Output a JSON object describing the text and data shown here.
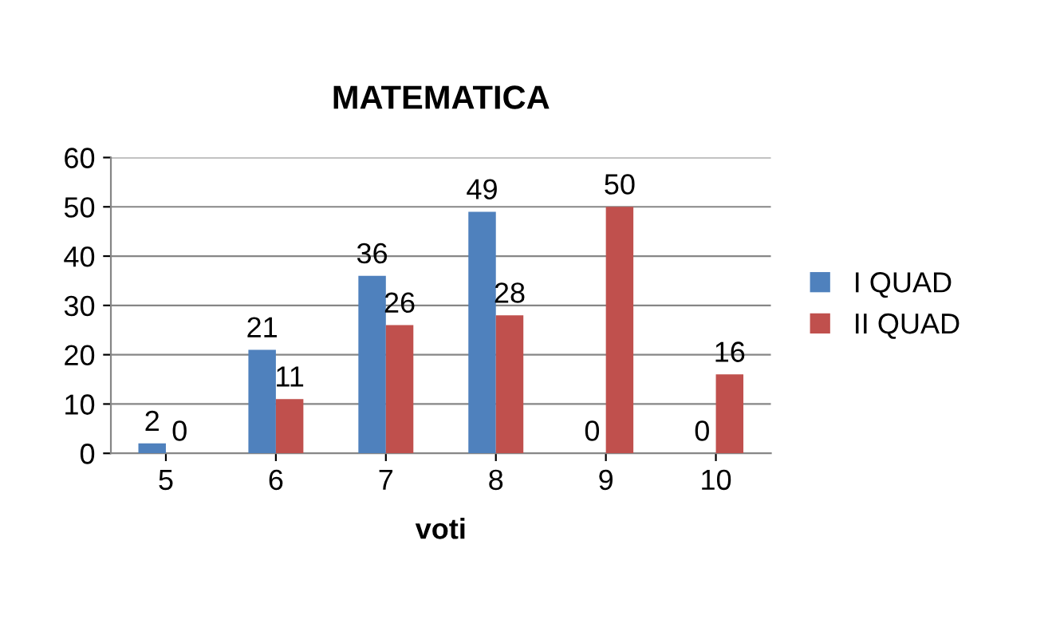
{
  "chart_data": {
    "type": "bar",
    "title": "MATEMATICA",
    "xlabel": "voti",
    "categories": [
      "5",
      "6",
      "7",
      "8",
      "9",
      "10"
    ],
    "series": [
      {
        "name": "I QUAD",
        "color": "#4f81bd",
        "values": [
          2,
          21,
          36,
          49,
          0,
          0
        ]
      },
      {
        "name": "II QUAD",
        "color": "#c0504d",
        "values": [
          0,
          11,
          26,
          28,
          50,
          16
        ]
      }
    ],
    "ylim": [
      0,
      60
    ],
    "yticks": [
      0,
      10,
      20,
      30,
      40,
      50,
      60
    ],
    "grid": "y",
    "legend": "right",
    "data_labels": true
  }
}
